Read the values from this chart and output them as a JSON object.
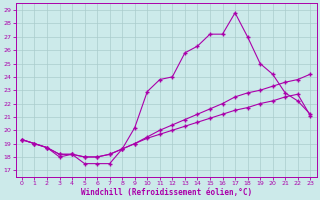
{
  "xlabel": "Windchill (Refroidissement éolien,°C)",
  "bg_color": "#cceaea",
  "line_color": "#aa00aa",
  "grid_color": "#aacccc",
  "xlim": [
    -0.5,
    23.5
  ],
  "ylim": [
    16.5,
    29.5
  ],
  "yticks": [
    17,
    18,
    19,
    20,
    21,
    22,
    23,
    24,
    25,
    26,
    27,
    28,
    29
  ],
  "xticks": [
    0,
    1,
    2,
    3,
    4,
    5,
    6,
    7,
    8,
    9,
    10,
    11,
    12,
    13,
    14,
    15,
    16,
    17,
    18,
    19,
    20,
    21,
    22,
    23
  ],
  "line1_x": [
    0,
    1,
    2,
    3,
    4,
    5,
    6,
    7,
    8,
    9,
    10,
    11,
    12,
    13,
    14,
    15,
    16,
    17,
    18,
    19,
    20,
    21,
    22,
    23
  ],
  "line1_y": [
    19.3,
    19.0,
    18.7,
    18.0,
    18.2,
    17.5,
    17.5,
    17.5,
    18.6,
    20.2,
    22.9,
    23.8,
    24.0,
    25.8,
    26.3,
    27.2,
    27.2,
    28.8,
    27.0,
    25.0,
    24.2,
    22.8,
    22.2,
    21.2
  ],
  "line2_x": [
    0,
    1,
    2,
    3,
    4,
    5,
    6,
    7,
    8,
    9,
    10,
    11,
    12,
    13,
    14,
    15,
    16,
    17,
    18,
    19,
    20,
    21,
    22,
    23
  ],
  "line2_y": [
    19.3,
    19.0,
    18.7,
    18.2,
    18.2,
    18.0,
    18.0,
    18.2,
    18.6,
    19.0,
    19.5,
    20.0,
    20.4,
    20.8,
    21.2,
    21.6,
    22.0,
    22.5,
    22.8,
    23.0,
    23.3,
    23.6,
    23.8,
    24.2
  ],
  "line3_x": [
    0,
    1,
    2,
    3,
    4,
    5,
    6,
    7,
    8,
    9,
    10,
    11,
    12,
    13,
    14,
    15,
    16,
    17,
    18,
    19,
    20,
    21,
    22,
    23
  ],
  "line3_y": [
    19.3,
    19.0,
    18.7,
    18.2,
    18.2,
    18.0,
    18.0,
    18.2,
    18.6,
    19.0,
    19.4,
    19.7,
    20.0,
    20.3,
    20.6,
    20.9,
    21.2,
    21.5,
    21.7,
    22.0,
    22.2,
    22.5,
    22.7,
    21.1
  ]
}
